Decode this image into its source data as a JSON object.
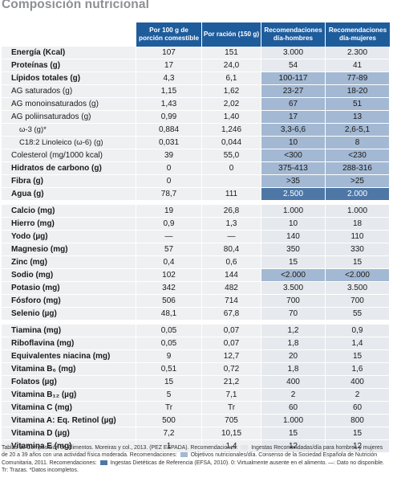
{
  "title": "Composición nutricional",
  "headers": {
    "per100": "Por 100 g de porción comestible",
    "ration": "Por ración (150 g)",
    "men": "Recomendaciones día-hombres",
    "women": "Recomendaciones día-mujeres"
  },
  "section1": [
    {
      "label": "Energía (Kcal)",
      "per100": "107",
      "ration": "151",
      "men": "3.000",
      "women": "2.300",
      "style": "bold",
      "hl": "l"
    },
    {
      "label": "Proteínas (g)",
      "per100": "17",
      "ration": "24,0",
      "men": "54",
      "women": "41",
      "style": "bold",
      "hl": "l"
    },
    {
      "label": "Lípidos totales (g)",
      "per100": "4,3",
      "ration": "6,1",
      "men": "100-117",
      "women": "77-89",
      "style": "bold",
      "hl": "m"
    },
    {
      "label": "AG saturados (g)",
      "per100": "1,15",
      "ration": "1,62",
      "men": "23-27",
      "women": "18-20",
      "style": "light",
      "hl": "m"
    },
    {
      "label": "AG monoinsaturados (g)",
      "per100": "1,43",
      "ration": "2,02",
      "men": "67",
      "women": "51",
      "style": "light",
      "hl": "m"
    },
    {
      "label": "AG poliinsaturados (g)",
      "per100": "0,99",
      "ration": "1,40",
      "men": "17",
      "women": "13",
      "style": "light",
      "hl": "m"
    },
    {
      "label": "ω-3 (g)*",
      "per100": "0,884",
      "ration": "1,246",
      "men": "3,3-6,6",
      "women": "2,6-5,1",
      "style": "ind",
      "hl": "m"
    },
    {
      "label": "C18:2 Linoleico (ω-6) (g)",
      "per100": "0,031",
      "ration": "0,044",
      "men": "10",
      "women": "8",
      "style": "ind",
      "hl": "m"
    },
    {
      "label": "Colesterol (mg/1000 kcal)",
      "per100": "39",
      "ration": "55,0",
      "men": "<300",
      "women": "<230",
      "style": "light",
      "hl": "m"
    },
    {
      "label": "Hidratos de carbono (g)",
      "per100": "0",
      "ration": "0",
      "men": "375-413",
      "women": "288-316",
      "style": "bold",
      "hl": "m"
    },
    {
      "label": "Fibra (g)",
      "per100": "0",
      "ration": "",
      "men": ">35",
      "women": ">25",
      "style": "bold",
      "hl": "m"
    },
    {
      "label": "Agua (g)",
      "per100": "78,7",
      "ration": "111",
      "men": "2.500",
      "women": "2.000",
      "style": "bold",
      "hl": "d"
    }
  ],
  "section2": [
    {
      "label": "Calcio (mg)",
      "per100": "19",
      "ration": "26,8",
      "men": "1.000",
      "women": "1.000",
      "hl": "l"
    },
    {
      "label": "Hierro (mg)",
      "per100": "0,9",
      "ration": "1,3",
      "men": "10",
      "women": "18",
      "hl": "l"
    },
    {
      "label": "Yodo (µg)",
      "per100": "—",
      "ration": "—",
      "men": "140",
      "women": "110",
      "hl": "l"
    },
    {
      "label": "Magnesio (mg)",
      "per100": "57",
      "ration": "80,4",
      "men": "350",
      "women": "330",
      "hl": "l"
    },
    {
      "label": "Zinc (mg)",
      "per100": "0,4",
      "ration": "0,6",
      "men": "15",
      "women": "15",
      "hl": "l"
    },
    {
      "label": "Sodio (mg)",
      "per100": "102",
      "ration": "144",
      "men": "<2.000",
      "women": "<2.000",
      "hl": "m"
    },
    {
      "label": "Potasio (mg)",
      "per100": "342",
      "ration": "482",
      "men": "3.500",
      "women": "3.500",
      "hl": "l"
    },
    {
      "label": "Fósforo (mg)",
      "per100": "506",
      "ration": "714",
      "men": "700",
      "women": "700",
      "hl": "l"
    },
    {
      "label": "Selenio (µg)",
      "per100": "48,1",
      "ration": "67,8",
      "men": "70",
      "women": "55",
      "hl": "l"
    }
  ],
  "section3": [
    {
      "label": "Tiamina (mg)",
      "per100": "0,05",
      "ration": "0,07",
      "men": "1,2",
      "women": "0,9",
      "hl": "l"
    },
    {
      "label": "Riboflavina (mg)",
      "per100": "0,05",
      "ration": "0,07",
      "men": "1,8",
      "women": "1,4",
      "hl": "l"
    },
    {
      "label": "Equivalentes niacina (mg)",
      "per100": "9",
      "ration": "12,7",
      "men": "20",
      "women": "15",
      "hl": "l"
    },
    {
      "label": "Vitamina B₆ (mg)",
      "per100": "0,51",
      "ration": "0,72",
      "men": "1,8",
      "women": "1,6",
      "hl": "l"
    },
    {
      "label": "Folatos (µg)",
      "per100": "15",
      "ration": "21,2",
      "men": "400",
      "women": "400",
      "hl": "l"
    },
    {
      "label": "Vitamina B₁₂ (µg)",
      "per100": "5",
      "ration": "7,1",
      "men": "2",
      "women": "2",
      "hl": "l"
    },
    {
      "label": "Vitamina C (mg)",
      "per100": "Tr",
      "ration": "Tr",
      "men": "60",
      "women": "60",
      "hl": "l"
    },
    {
      "label": "Vitamina A: Eq. Retinol (µg)",
      "per100": "500",
      "ration": "705",
      "men": "1.000",
      "women": "800",
      "hl": "l"
    },
    {
      "label": "Vitamina D (µg)",
      "per100": "7,2",
      "ration": "10,15",
      "men": "15",
      "women": "15",
      "hl": "l"
    },
    {
      "label": "Vitamina E (mg)",
      "per100": "1",
      "ration": "1,4",
      "men": "12",
      "women": "12",
      "hl": "l"
    }
  ],
  "footnote": {
    "part1": "Tablas de Composición de Alimentos. Moreiras y col., 2013. (PEZ ESPADA). Recomendaciones:",
    "part2": "Ingestas Recomendadas/día para hombres y mujeres de 20 a 39 años con una actividad física moderada. Recomendaciones:",
    "part3": "Objetivos nutricionales/día. Consenso de la Sociedad Española de Nutrición Comunitaria, 2011. Recomendaciones:",
    "part4": "Ingestas Dietéticas de Referencia (EFSA, 2010). 0: Virtualmente ausente en el alimento. —: Dato no disponible. Tr: Trazas. *Datos incompletos."
  },
  "colors": {
    "header": "#1f5c9c",
    "light": "#e6e9ed",
    "medium": "#a3b8d2",
    "dark": "#4e77a6",
    "title": "#8d8f95"
  }
}
